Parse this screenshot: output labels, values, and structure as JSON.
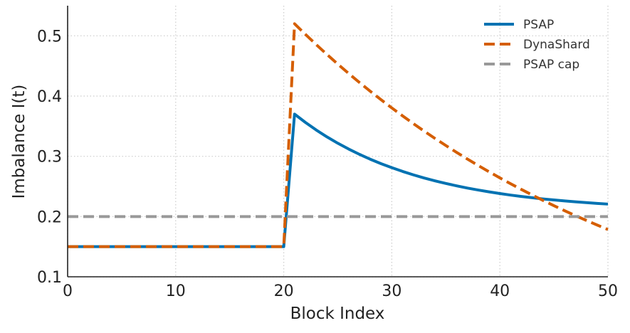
{
  "chart_data": {
    "type": "line",
    "title": "",
    "xlabel": "Block Index",
    "ylabel": "Imbalance I(t)",
    "xlim": [
      0,
      50
    ],
    "ylim": [
      0.1,
      0.55
    ],
    "xticks": [
      0,
      10,
      20,
      30,
      40,
      50
    ],
    "yticks": [
      0.1,
      0.2,
      0.3,
      0.4,
      0.5
    ],
    "xtick_labels": [
      "0",
      "10",
      "20",
      "30",
      "40",
      "50"
    ],
    "ytick_labels": [
      "0.1",
      "0.2",
      "0.3",
      "0.4",
      "0.5"
    ],
    "grid": true,
    "grid_style": "dotted",
    "legend_position": "top-right",
    "series": [
      {
        "name": "PSAP",
        "color": "#0072b2",
        "style": "solid",
        "x": [
          0,
          20,
          21,
          22,
          23,
          24,
          25,
          26,
          27,
          28,
          29,
          30,
          31,
          32,
          33,
          34,
          35,
          36,
          37,
          38,
          39,
          40,
          41,
          42,
          43,
          44,
          45,
          46,
          47,
          48,
          49,
          50
        ],
        "y": [
          0.15,
          0.15,
          0.37,
          0.3563,
          0.3437,
          0.3322,
          0.3217,
          0.3121,
          0.3033,
          0.2952,
          0.2878,
          0.2811,
          0.2749,
          0.2692,
          0.264,
          0.2593,
          0.2549,
          0.251,
          0.2473,
          0.244,
          0.241,
          0.2382,
          0.2356,
          0.2333,
          0.2312,
          0.2292,
          0.2275,
          0.2259,
          0.2244,
          0.2231,
          0.2218,
          0.2207
        ]
      },
      {
        "name": "DynaShard",
        "color": "#d55e00",
        "style": "dashed",
        "x": [
          0,
          20,
          21,
          22,
          23,
          24,
          25,
          26,
          27,
          28,
          29,
          30,
          31,
          32,
          33,
          34,
          35,
          36,
          37,
          38,
          39,
          40,
          41,
          42,
          43,
          44,
          45,
          46,
          47,
          48,
          49,
          50
        ],
        "y": [
          0.15,
          0.15,
          0.52,
          0.5025,
          0.4855,
          0.469,
          0.4531,
          0.4376,
          0.4226,
          0.4081,
          0.394,
          0.3803,
          0.3671,
          0.3542,
          0.3417,
          0.3296,
          0.3179,
          0.3065,
          0.2954,
          0.2847,
          0.2743,
          0.2642,
          0.2544,
          0.2449,
          0.2357,
          0.2267,
          0.2181,
          0.2096,
          0.2015,
          0.1936,
          0.1859,
          0.1785
        ]
      },
      {
        "name": "PSAP cap",
        "color": "#999999",
        "style": "dashed",
        "x": [
          0,
          50
        ],
        "y": [
          0.2,
          0.2
        ]
      }
    ]
  }
}
